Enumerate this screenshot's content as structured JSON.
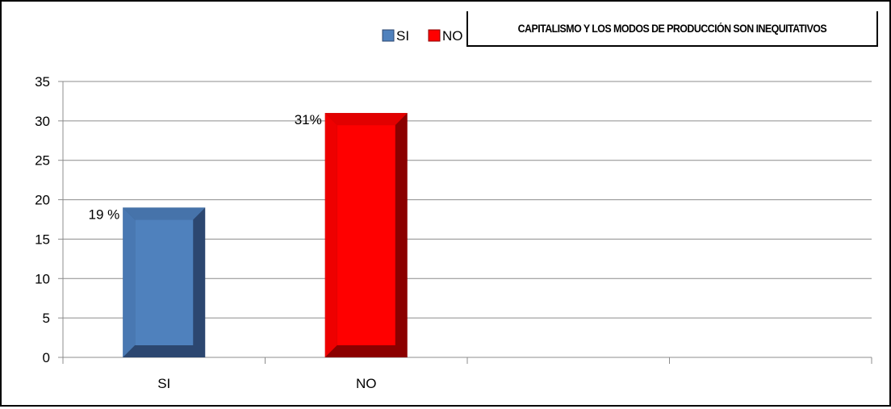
{
  "chart_data": {
    "type": "bar",
    "title": "CAPITALISMO Y LOS MODOS DE PRODUCCIÓN SON INEQUITATIVOS",
    "categories": [
      "SI",
      "NO"
    ],
    "series": [
      {
        "name": "SI",
        "category": "SI",
        "value": 19,
        "label": "19 %",
        "color": "#4F81BD",
        "dark": "#2C4770",
        "light": "#7FA4D6"
      },
      {
        "name": "NO",
        "category": "NO",
        "value": 31,
        "label": "31%",
        "color": "#FF0000",
        "dark": "#8B0000",
        "light": "#FF6060"
      }
    ],
    "x_slots": 4,
    "yticks": [
      0,
      5,
      10,
      15,
      20,
      25,
      30,
      35
    ],
    "ylim": [
      0,
      35
    ],
    "grid": true,
    "legend": "top-center",
    "xlabel": "",
    "ylabel": ""
  }
}
